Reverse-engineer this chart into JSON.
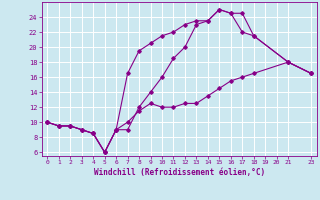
{
  "xlabel": "Windchill (Refroidissement éolien,°C)",
  "ylabel": "",
  "bg_color": "#cce8f0",
  "grid_color": "#ffffff",
  "line_color": "#880088",
  "xlim": [
    -0.5,
    23.5
  ],
  "ylim": [
    5.5,
    26
  ],
  "yticks": [
    6,
    8,
    10,
    12,
    14,
    16,
    18,
    20,
    22,
    24
  ],
  "xticks": [
    0,
    1,
    2,
    3,
    4,
    5,
    6,
    7,
    8,
    9,
    10,
    11,
    12,
    13,
    14,
    15,
    16,
    17,
    18,
    19,
    20,
    21,
    23
  ],
  "series": [
    {
      "x": [
        0,
        1,
        2,
        3,
        4,
        5,
        6,
        7,
        8,
        9,
        10,
        11,
        12,
        13,
        14,
        15,
        16,
        17,
        18,
        21,
        23
      ],
      "y": [
        10,
        9.5,
        9.5,
        9,
        8.5,
        6.0,
        9.0,
        10.0,
        11.5,
        12.5,
        12.0,
        12.0,
        12.5,
        12.5,
        13.5,
        14.5,
        15.5,
        16.0,
        16.5,
        18,
        16.5
      ]
    },
    {
      "x": [
        0,
        1,
        2,
        3,
        4,
        5,
        6,
        7,
        8,
        9,
        10,
        11,
        12,
        13,
        14,
        15,
        16,
        17,
        18,
        21,
        23
      ],
      "y": [
        10,
        9.5,
        9.5,
        9,
        8.5,
        6.0,
        9.0,
        9.0,
        12.0,
        14.0,
        16.0,
        18.5,
        20.0,
        23.0,
        23.5,
        25.0,
        24.5,
        24.5,
        21.5,
        18,
        16.5
      ]
    },
    {
      "x": [
        0,
        1,
        2,
        3,
        4,
        5,
        6,
        7,
        8,
        9,
        10,
        11,
        12,
        13,
        14,
        15,
        16,
        17,
        18,
        21,
        23
      ],
      "y": [
        10,
        9.5,
        9.5,
        9,
        8.5,
        6.0,
        9.0,
        16.5,
        19.5,
        20.5,
        21.5,
        22.0,
        23.0,
        23.5,
        23.5,
        25.0,
        24.5,
        22.0,
        21.5,
        18,
        16.5
      ]
    }
  ]
}
